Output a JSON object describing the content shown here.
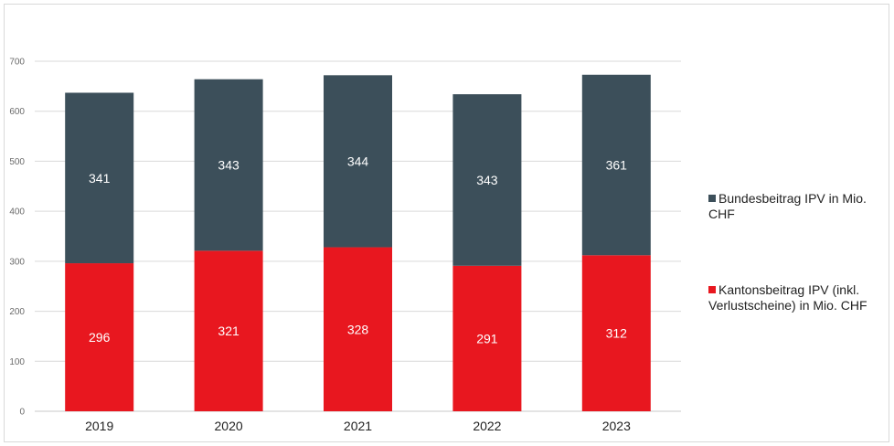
{
  "chart_data": {
    "type": "bar",
    "stacked": true,
    "categories": [
      "2019",
      "2020",
      "2021",
      "2022",
      "2023"
    ],
    "series": [
      {
        "name": "Kantonsbeitrag IPV (inkl. Verlustscheine) in Mio. CHF",
        "values": [
          296,
          321,
          328,
          291,
          312
        ],
        "color": "#e8171f"
      },
      {
        "name": "Bundesbeitrag IPV in Mio. CHF",
        "values": [
          341,
          343,
          344,
          343,
          361
        ],
        "color": "#3c4f5a"
      }
    ],
    "yticks": [
      "0",
      "100",
      "200",
      "300",
      "400",
      "500",
      "600",
      "700"
    ],
    "ylim": [
      0,
      700
    ],
    "grid": true,
    "legend_position": "right"
  }
}
